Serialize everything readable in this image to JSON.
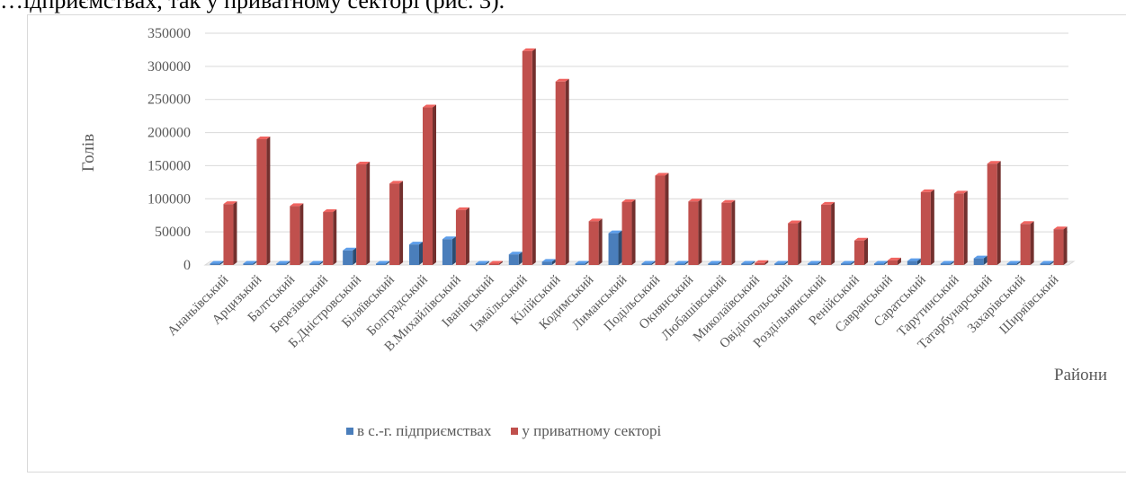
{
  "page_text": "…ідприємствах, так у приватному секторі (рис. 3).",
  "chart_data": {
    "type": "bar",
    "title": "",
    "xlabel": "Райони",
    "ylabel": "Голів",
    "ylim": [
      0,
      350000
    ],
    "y_ticks": [
      0,
      50000,
      100000,
      150000,
      200000,
      250000,
      300000,
      350000
    ],
    "grid": true,
    "legend_position": "bottom",
    "categories": [
      "Ананьївський",
      "Арцизький",
      "Балтський",
      "Березівський",
      "Б.Дністровський",
      "Біляївський",
      "Болградський",
      "В.Михайлівський",
      "Іванівський",
      "Ізмаїльський",
      "Кілійський",
      "Кодимський",
      "Лиманський",
      "Подільський",
      "Окнянський",
      "Любашівський",
      "Миколаївський",
      "Овідіопольський",
      "Роздільнянський",
      "Ренійський",
      "Савранський",
      "Саратський",
      "Тарутинський",
      "Татарбунарський",
      "Захарівський",
      "Ширяївський"
    ],
    "series": [
      {
        "name": "в с.-г. підприємствах",
        "color": "#4a7ebb",
        "values": [
          1000,
          1000,
          1000,
          1000,
          22000,
          1000,
          31000,
          39000,
          1000,
          16000,
          5000,
          1000,
          48000,
          1000,
          1000,
          1000,
          1000,
          2000,
          1000,
          1000,
          1000,
          6000,
          1000,
          10000,
          1000,
          1000
        ]
      },
      {
        "name": "у приватному секторі",
        "color": "#c0504d",
        "values": [
          92000,
          190000,
          89000,
          80000,
          152000,
          123000,
          238000,
          83000,
          0,
          323000,
          277000,
          66000,
          95000,
          135000,
          96000,
          94000,
          3000,
          63000,
          91000,
          37000,
          7000,
          110000,
          108000,
          153000,
          62000,
          54000
        ]
      }
    ]
  }
}
